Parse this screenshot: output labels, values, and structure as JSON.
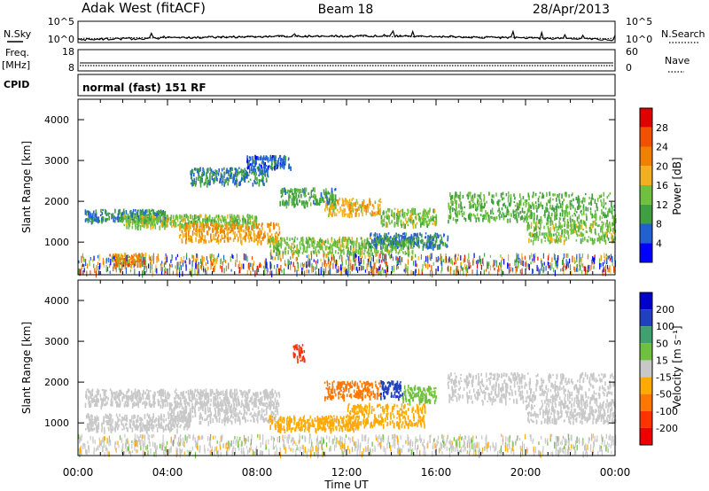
{
  "header": {
    "station": "Adak West (fitACF)",
    "beam": "Beam 18",
    "date": "28/Apr/2013"
  },
  "top_panels": {
    "nsky_label": "N.Sky",
    "nsearch_label": "N.Search",
    "freq_label": "Freq.",
    "freq_unit": "[MHz]",
    "nave_label": "Nave",
    "cpid_label": "CPID",
    "cpid_text": "normal (fast) 151 RF"
  },
  "colors": {
    "power": [
      "#0000ff",
      "#2060d0",
      "#40a040",
      "#70c040",
      "#f0b020",
      "#f08000",
      "#f05000",
      "#e00000"
    ],
    "velocity": [
      "#ee0000",
      "#ff3300",
      "#ff7700",
      "#ffaa00",
      "#c8c8c8",
      "#70c040",
      "#40a070",
      "#2040c0",
      "#0000cc"
    ]
  },
  "chart_data": [
    {
      "type": "heatmap",
      "name": "noise-frequency-strip",
      "x_ticks": [
        "00:00",
        "04:00",
        "08:00",
        "12:00",
        "16:00",
        "20:00",
        "00:00"
      ],
      "nsky_ticks": [
        "10^5",
        "10^0"
      ],
      "nsearch_ticks": [
        "10^5",
        "10^0"
      ],
      "freq_ticks": [
        "18",
        "8"
      ],
      "nave_ticks": [
        "60",
        "0"
      ],
      "xlim": [
        0,
        24
      ]
    },
    {
      "type": "heatmap",
      "name": "power",
      "xlabel": "",
      "ylabel": "Slant Range [km]",
      "xlim": [
        0,
        24
      ],
      "ylim": [
        200,
        4500
      ],
      "y_ticks": [
        "4000",
        "3000",
        "2000",
        "1000"
      ],
      "x_ticks": [
        "00:00",
        "04:00",
        "08:00",
        "12:00",
        "16:00",
        "20:00",
        "00:00"
      ],
      "colorbar": {
        "label": "Power [dB]",
        "ticks": [
          "28",
          "24",
          "20",
          "16",
          "12",
          "8",
          "4"
        ],
        "range": [
          0,
          32
        ]
      },
      "features": [
        {
          "t0": 0.3,
          "t1": 4.0,
          "r0": 1480,
          "r1": 1780,
          "v": 8
        },
        {
          "t0": 2.0,
          "t1": 8.0,
          "r0": 1350,
          "r1": 1650,
          "v": 14
        },
        {
          "t0": 4.5,
          "t1": 9.0,
          "r0": 1000,
          "r1": 1450,
          "v": 20
        },
        {
          "t0": 8.5,
          "t1": 15.0,
          "r0": 700,
          "r1": 1100,
          "v": 14
        },
        {
          "t0": 13.0,
          "t1": 16.5,
          "r0": 850,
          "r1": 1200,
          "v": 8
        },
        {
          "t0": 11.0,
          "t1": 13.5,
          "r0": 1650,
          "r1": 2050,
          "v": 18
        },
        {
          "t0": 13.5,
          "t1": 16.0,
          "r0": 1400,
          "r1": 1800,
          "v": 14
        },
        {
          "t0": 9.0,
          "t1": 11.5,
          "r0": 1900,
          "r1": 2300,
          "v": 10
        },
        {
          "t0": 5.0,
          "t1": 8.5,
          "r0": 2400,
          "r1": 2800,
          "v": 8
        },
        {
          "t0": 7.5,
          "t1": 9.5,
          "r0": 2800,
          "r1": 3100,
          "v": 6
        },
        {
          "t0": 16.5,
          "t1": 24.0,
          "r0": 1500,
          "r1": 2200,
          "v": 12
        },
        {
          "t0": 20.0,
          "t1": 24.0,
          "r0": 1000,
          "r1": 1500,
          "v": 14
        },
        {
          "t0": 1.5,
          "t1": 3.0,
          "r0": 400,
          "r1": 700,
          "v": 22
        }
      ]
    },
    {
      "type": "heatmap",
      "name": "velocity",
      "xlabel": "Time UT",
      "ylabel": "Slant Range [km]",
      "xlim": [
        0,
        24
      ],
      "ylim": [
        200,
        4500
      ],
      "y_ticks": [
        "4000",
        "3000",
        "2000",
        "1000"
      ],
      "x_ticks": [
        "00:00",
        "04:00",
        "08:00",
        "12:00",
        "16:00",
        "20:00",
        "00:00"
      ],
      "colorbar": {
        "label": "Velocity [m s⁻¹]",
        "ticks": [
          "200",
          "100",
          "50",
          "15",
          "-15",
          "-50",
          "-100",
          "-200"
        ]
      },
      "features": [
        {
          "t0": 0.3,
          "t1": 9.0,
          "r0": 1400,
          "r1": 1800,
          "v": 0
        },
        {
          "t0": 0.3,
          "t1": 5.0,
          "r0": 800,
          "r1": 1200,
          "v": 0
        },
        {
          "t0": 4.0,
          "t1": 9.0,
          "r0": 1000,
          "r1": 1500,
          "v": 0
        },
        {
          "t0": 8.5,
          "t1": 12.5,
          "r0": 800,
          "r1": 1150,
          "v": -30
        },
        {
          "t0": 12.0,
          "t1": 15.5,
          "r0": 900,
          "r1": 1450,
          "v": -40
        },
        {
          "t0": 11.0,
          "t1": 13.5,
          "r0": 1600,
          "r1": 2000,
          "v": -80
        },
        {
          "t0": 13.5,
          "t1": 14.5,
          "r0": 1600,
          "r1": 2000,
          "v": 120
        },
        {
          "t0": 14.5,
          "t1": 16.0,
          "r0": 1500,
          "r1": 1900,
          "v": 30
        },
        {
          "t0": 9.6,
          "t1": 10.1,
          "r0": 2500,
          "r1": 2900,
          "v": -150
        },
        {
          "t0": 16.5,
          "t1": 24.0,
          "r0": 1500,
          "r1": 2200,
          "v": 0
        },
        {
          "t0": 20.0,
          "t1": 24.0,
          "r0": 1000,
          "r1": 1500,
          "v": 0
        }
      ]
    }
  ]
}
